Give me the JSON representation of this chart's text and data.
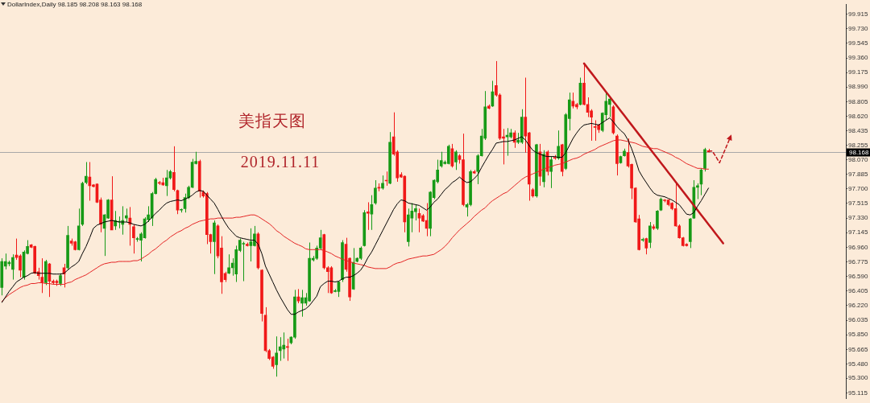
{
  "chart_data": {
    "type": "candlestick",
    "title": "DollarIndex,Daily 98.185 98.208 98.163 98.168",
    "annotations": [
      "美指天图",
      "2019.11.11"
    ],
    "categories": [
      null,
      null,
      null,
      null,
      null,
      null,
      null,
      null,
      null,
      null,
      null,
      null,
      null,
      null,
      null,
      null,
      null,
      null,
      null,
      null,
      null,
      null,
      null,
      null,
      null,
      null,
      null,
      null,
      null,
      null,
      null,
      null,
      null,
      null,
      null,
      null,
      null,
      null,
      null,
      null,
      null,
      null,
      null,
      null,
      null,
      null,
      null,
      null,
      null,
      null,
      null,
      null,
      null,
      null,
      null,
      null,
      null,
      null,
      null,
      null,
      null,
      null,
      null,
      null,
      null,
      null,
      null,
      null,
      null,
      null,
      null,
      null,
      null,
      null,
      null,
      null,
      null,
      null,
      null,
      null,
      null,
      null,
      null,
      null,
      null,
      null,
      null,
      null,
      null,
      null,
      null,
      null,
      null,
      null,
      null,
      null,
      null,
      null,
      null,
      null,
      null,
      null,
      null,
      null,
      null,
      null,
      null,
      null,
      null,
      null,
      null,
      null,
      null,
      null,
      null,
      null,
      null,
      null,
      null,
      null,
      null,
      null,
      null,
      null,
      null,
      null,
      null,
      null,
      null,
      null,
      null,
      null,
      null,
      null,
      null,
      null,
      null,
      null,
      null,
      null,
      null,
      null,
      null,
      null,
      null,
      null,
      null,
      null,
      null,
      null,
      null,
      null,
      null,
      null,
      null,
      null,
      null,
      null,
      null,
      null,
      null,
      null,
      null,
      null,
      null,
      null,
      null,
      null,
      null,
      null,
      null,
      null,
      null,
      null,
      null,
      null,
      null,
      null,
      null,
      null,
      null,
      null,
      null,
      null,
      null,
      null,
      null,
      null,
      null,
      null,
      null,
      null,
      null,
      null,
      null,
      null,
      null,
      null,
      null,
      null,
      null,
      null,
      null,
      null,
      null,
      null,
      null,
      null,
      null,
      null,
      null,
      null,
      null,
      null,
      null,
      null,
      null,
      null,
      null,
      null,
      null,
      null,
      null,
      null,
      null,
      null,
      null,
      null,
      null,
      null,
      null
    ],
    "ohlc": [
      [
        96.45,
        96.82,
        96.35,
        96.78
      ],
      [
        96.72,
        96.88,
        96.68,
        96.78
      ],
      [
        96.75,
        96.79,
        96.72,
        96.77
      ],
      [
        96.68,
        96.87,
        96.55,
        96.83
      ],
      [
        96.86,
        97.07,
        96.8,
        96.83
      ],
      [
        96.85,
        96.87,
        96.58,
        96.67
      ],
      [
        96.58,
        96.92,
        96.55,
        96.9
      ],
      [
        96.88,
        97.05,
        96.87,
        96.97
      ],
      [
        96.99,
        97.0,
        96.95,
        96.96
      ],
      [
        96.97,
        96.98,
        96.62,
        96.63
      ],
      [
        96.65,
        96.7,
        96.55,
        96.6
      ],
      [
        96.58,
        96.82,
        96.38,
        96.51
      ],
      [
        96.51,
        96.8,
        96.48,
        96.78
      ],
      [
        96.75,
        96.76,
        96.33,
        96.53
      ],
      [
        96.53,
        96.55,
        96.49,
        96.51
      ],
      [
        96.53,
        96.55,
        96.47,
        96.51
      ],
      [
        96.5,
        96.63,
        96.47,
        96.6
      ],
      [
        96.7,
        96.75,
        96.45,
        96.62
      ],
      [
        96.7,
        97.23,
        96.68,
        97.11
      ],
      [
        97.04,
        97.07,
        96.98,
        97.01
      ],
      [
        97.03,
        97.04,
        96.92,
        96.93
      ],
      [
        96.93,
        97.45,
        96.92,
        97.23
      ],
      [
        97.25,
        97.79,
        97.23,
        97.77
      ],
      [
        97.78,
        98.04,
        97.76,
        97.86
      ],
      [
        97.85,
        98.04,
        97.55,
        97.74
      ],
      [
        97.75,
        97.76,
        97.72,
        97.73
      ],
      [
        97.76,
        97.77,
        97.52,
        97.53
      ],
      [
        97.56,
        97.59,
        97.15,
        97.25
      ],
      [
        97.2,
        97.38,
        96.85,
        97.37
      ],
      [
        97.33,
        97.57,
        97.32,
        97.56
      ],
      [
        97.56,
        97.86,
        97.18,
        97.18
      ],
      [
        97.23,
        97.42,
        97.18,
        97.3
      ],
      [
        97.28,
        97.35,
        97.2,
        97.29
      ],
      [
        97.25,
        97.48,
        97.12,
        97.3
      ],
      [
        97.33,
        97.45,
        97.28,
        97.36
      ],
      [
        97.33,
        97.47,
        96.98,
        97.25
      ],
      [
        97.22,
        97.25,
        96.88,
        97.08
      ],
      [
        97.06,
        97.09,
        97.03,
        97.07
      ],
      [
        97.05,
        97.15,
        96.78,
        97.13
      ],
      [
        97.08,
        97.34,
        97.07,
        97.32
      ],
      [
        97.31,
        97.48,
        97.28,
        97.37
      ],
      [
        97.33,
        97.66,
        97.23,
        97.64
      ],
      [
        97.64,
        97.84,
        97.63,
        97.82
      ],
      [
        97.78,
        97.8,
        97.75,
        97.77
      ],
      [
        97.78,
        97.84,
        97.74,
        97.75
      ],
      [
        97.74,
        97.94,
        97.61,
        97.84
      ],
      [
        97.84,
        97.94,
        97.82,
        97.92
      ],
      [
        97.91,
        98.24,
        97.67,
        97.69
      ],
      [
        97.68,
        97.69,
        97.38,
        97.43
      ],
      [
        97.43,
        97.45,
        97.4,
        97.43
      ],
      [
        97.45,
        97.64,
        97.4,
        97.59
      ],
      [
        97.59,
        97.74,
        97.57,
        97.72
      ],
      [
        97.72,
        98.08,
        97.71,
        98.04
      ],
      [
        98.02,
        98.17,
        98.01,
        98.05
      ],
      [
        98.05,
        98.07,
        97.59,
        97.67
      ],
      [
        97.66,
        97.68,
        97.59,
        97.61
      ],
      [
        97.64,
        97.66,
        97.0,
        97.12
      ],
      [
        97.12,
        97.13,
        96.88,
        97.03
      ],
      [
        97.03,
        97.3,
        96.62,
        97.27
      ],
      [
        97.23,
        97.25,
        96.82,
        96.85
      ],
      [
        96.95,
        97.1,
        96.37,
        96.52
      ],
      [
        96.63,
        96.65,
        96.52,
        96.55
      ],
      [
        96.63,
        96.87,
        96.62,
        96.7
      ],
      [
        96.7,
        96.82,
        96.6,
        96.76
      ],
      [
        96.62,
        96.98,
        96.52,
        96.93
      ],
      [
        96.92,
        97.07,
        96.9,
        97.05
      ],
      [
        97.0,
        97.03,
        96.53,
        97.01
      ],
      [
        97.0,
        97.02,
        96.97,
        96.98
      ],
      [
        96.98,
        97.2,
        96.78,
        97.03
      ],
      [
        96.98,
        97.23,
        96.97,
        97.13
      ],
      [
        97.13,
        97.15,
        96.68,
        96.7
      ],
      [
        96.67,
        96.68,
        96.02,
        96.12
      ],
      [
        96.1,
        96.2,
        95.63,
        95.65
      ],
      [
        95.65,
        95.67,
        95.53,
        95.55
      ],
      [
        95.57,
        95.58,
        95.42,
        95.45
      ],
      [
        95.47,
        95.83,
        95.32,
        95.62
      ],
      [
        95.65,
        95.82,
        95.52,
        95.7
      ],
      [
        95.67,
        95.88,
        95.55,
        95.72
      ],
      [
        95.7,
        95.8,
        95.52,
        95.69
      ],
      [
        95.75,
        95.83,
        95.73,
        95.82
      ],
      [
        95.82,
        96.42,
        95.8,
        96.33
      ],
      [
        96.33,
        96.43,
        96.25,
        96.28
      ],
      [
        96.25,
        96.42,
        96.08,
        96.32
      ],
      [
        96.25,
        96.38,
        96.22,
        96.32
      ],
      [
        96.28,
        97.02,
        96.27,
        96.82
      ],
      [
        96.8,
        96.85,
        96.78,
        96.82
      ],
      [
        96.82,
        96.98,
        96.8,
        96.95
      ],
      [
        96.95,
        97.18,
        96.93,
        97.08
      ],
      [
        97.12,
        97.13,
        96.68,
        96.7
      ],
      [
        96.7,
        96.72,
        96.38,
        96.65
      ],
      [
        96.7,
        96.72,
        96.37,
        96.38
      ],
      [
        96.4,
        96.43,
        96.39,
        96.41
      ],
      [
        96.4,
        96.53,
        96.33,
        96.52
      ],
      [
        96.55,
        97.05,
        96.52,
        97.02
      ],
      [
        97.0,
        97.08,
        96.65,
        96.68
      ],
      [
        96.82,
        96.83,
        96.28,
        96.33
      ],
      [
        96.43,
        96.95,
        96.42,
        96.77
      ],
      [
        96.78,
        96.83,
        96.77,
        96.82
      ],
      [
        96.82,
        96.97,
        96.8,
        96.95
      ],
      [
        96.98,
        97.43,
        96.97,
        97.4
      ],
      [
        97.41,
        97.53,
        97.18,
        97.39
      ],
      [
        97.38,
        97.62,
        97.18,
        97.5
      ],
      [
        97.52,
        97.81,
        97.5,
        97.71
      ],
      [
        97.72,
        97.77,
        97.67,
        97.71
      ],
      [
        97.71,
        97.87,
        97.69,
        97.77
      ],
      [
        97.81,
        97.92,
        97.74,
        97.8
      ],
      [
        97.77,
        98.42,
        97.76,
        98.29
      ],
      [
        98.36,
        98.67,
        98.12,
        98.14
      ],
      [
        98.17,
        98.19,
        97.79,
        97.84
      ],
      [
        97.88,
        97.91,
        97.84,
        97.85
      ],
      [
        97.86,
        97.87,
        97.15,
        97.28
      ],
      [
        97.03,
        97.45,
        96.97,
        97.37
      ],
      [
        97.33,
        97.52,
        97.15,
        97.42
      ],
      [
        97.41,
        97.5,
        97.3,
        97.45
      ],
      [
        97.39,
        97.45,
        97.15,
        97.33
      ],
      [
        97.36,
        97.38,
        97.28,
        97.29
      ],
      [
        97.3,
        97.52,
        97.1,
        97.2
      ],
      [
        97.2,
        97.67,
        97.1,
        97.66
      ],
      [
        97.59,
        97.82,
        97.57,
        97.81
      ],
      [
        97.79,
        98.07,
        97.77,
        97.94
      ],
      [
        97.99,
        98.17,
        97.97,
        98.06
      ],
      [
        98.02,
        98.06,
        98.01,
        98.04
      ],
      [
        98.02,
        98.26,
        98.01,
        98.24
      ],
      [
        98.21,
        98.27,
        97.97,
        97.99
      ],
      [
        98.04,
        98.19,
        97.94,
        98.17
      ],
      [
        98.12,
        98.14,
        98.02,
        98.07
      ],
      [
        98.07,
        98.4,
        97.48,
        97.5
      ],
      [
        97.47,
        97.52,
        97.35,
        97.5
      ],
      [
        97.5,
        97.94,
        97.48,
        97.92
      ],
      [
        97.92,
        97.94,
        97.89,
        97.9
      ],
      [
        97.92,
        98.14,
        97.76,
        98.12
      ],
      [
        98.12,
        98.46,
        98.11,
        98.37
      ],
      [
        98.34,
        98.94,
        98.32,
        98.74
      ],
      [
        98.75,
        98.77,
        98.71,
        98.72
      ],
      [
        98.75,
        99.07,
        98.74,
        98.93
      ],
      [
        99.01,
        99.32,
        98.87,
        98.89
      ],
      [
        98.89,
        98.91,
        98.32,
        98.34
      ],
      [
        98.36,
        98.46,
        98.01,
        98.34
      ],
      [
        98.36,
        98.47,
        98.12,
        98.38
      ],
      [
        98.36,
        98.46,
        98.34,
        98.41
      ],
      [
        98.41,
        98.44,
        98.22,
        98.29
      ],
      [
        98.29,
        98.41,
        98.27,
        98.32
      ],
      [
        98.29,
        98.71,
        98.27,
        98.61
      ],
      [
        98.61,
        99.11,
        98.16,
        98.37
      ],
      [
        98.41,
        98.42,
        97.55,
        97.76
      ],
      [
        97.69,
        97.71,
        97.59,
        97.61
      ],
      [
        97.61,
        98.27,
        97.59,
        98.26
      ],
      [
        98.17,
        98.27,
        97.74,
        97.86
      ],
      [
        97.79,
        98.19,
        97.72,
        98.14
      ],
      [
        98.17,
        98.19,
        97.87,
        97.92
      ],
      [
        97.92,
        98.11,
        97.71,
        98.07
      ],
      [
        98.1,
        98.13,
        98.07,
        98.09
      ],
      [
        98.09,
        98.44,
        98.07,
        98.24
      ],
      [
        98.26,
        98.27,
        97.86,
        97.92
      ],
      [
        97.96,
        98.66,
        97.94,
        98.64
      ],
      [
        98.59,
        98.92,
        98.44,
        98.83
      ],
      [
        98.81,
        98.92,
        98.72,
        98.75
      ],
      [
        98.77,
        98.79,
        98.71,
        98.74
      ],
      [
        98.77,
        99.11,
        98.76,
        99.04
      ],
      [
        99.04,
        99.27,
        98.76,
        98.77
      ],
      [
        98.77,
        98.86,
        98.61,
        98.67
      ],
      [
        98.69,
        98.71,
        98.31,
        98.61
      ],
      [
        98.49,
        98.57,
        98.31,
        98.48
      ],
      [
        98.51,
        98.52,
        98.41,
        98.45
      ],
      [
        98.44,
        98.67,
        98.42,
        98.66
      ],
      [
        98.64,
        98.92,
        98.57,
        98.81
      ],
      [
        98.77,
        98.86,
        98.61,
        98.84
      ],
      [
        98.74,
        98.76,
        98.39,
        98.41
      ],
      [
        98.37,
        98.39,
        97.87,
        98.02
      ],
      [
        98.03,
        98.12,
        98.02,
        98.11
      ],
      [
        98.12,
        98.21,
        98.11,
        98.18
      ],
      [
        98.16,
        98.34,
        97.97,
        97.99
      ],
      [
        98.01,
        98.02,
        97.57,
        97.71
      ],
      [
        97.71,
        97.72,
        97.27,
        97.28
      ],
      [
        97.32,
        97.37,
        96.92,
        96.93
      ],
      [
        97.05,
        97.08,
        97.03,
        97.06
      ],
      [
        97.07,
        97.08,
        96.87,
        96.95
      ],
      [
        97.02,
        97.28,
        96.95,
        97.23
      ],
      [
        97.22,
        97.25,
        97.18,
        97.2
      ],
      [
        97.2,
        97.43,
        97.18,
        97.42
      ],
      [
        97.43,
        97.59,
        97.42,
        97.57
      ],
      [
        97.56,
        97.57,
        97.53,
        97.55
      ],
      [
        97.56,
        97.57,
        97.48,
        97.5
      ],
      [
        97.52,
        97.53,
        97.43,
        97.45
      ],
      [
        97.45,
        97.79,
        97.22,
        97.23
      ],
      [
        97.23,
        97.25,
        97.07,
        97.08
      ],
      [
        97.08,
        97.09,
        96.97,
        96.98
      ],
      [
        97.0,
        97.01,
        96.97,
        96.98
      ],
      [
        97.03,
        97.33,
        96.95,
        97.32
      ],
      [
        97.33,
        97.81,
        97.32,
        97.72
      ],
      [
        97.72,
        97.77,
        97.57,
        97.74
      ],
      [
        97.76,
        97.96,
        97.62,
        97.94
      ],
      [
        97.96,
        98.22,
        97.92,
        98.2
      ],
      [
        98.185,
        98.208,
        98.163,
        98.168
      ],
      null,
      null,
      null,
      null,
      null,
      null,
      null,
      null,
      null,
      null,
      null,
      null,
      null,
      null,
      null,
      null,
      null,
      null,
      null,
      null,
      null,
      null,
      null,
      null,
      null,
      null,
      null,
      null,
      null,
      null,
      null,
      null,
      null,
      null,
      null,
      null,
      null
    ],
    "colors": [
      "#169a16",
      "#169a16",
      "#169a16",
      "#169a16",
      "#f01818",
      "#f01818",
      "#169a16",
      "#169a16",
      "#f01818",
      "#f01818",
      "#f01818",
      "#f01818",
      "#169a16",
      "#f01818",
      "#f01818",
      "#f01818",
      "#169a16",
      "#f01818",
      "#169a16",
      "#f01818",
      "#f01818",
      "#169a16",
      "#169a16",
      "#169a16",
      "#f01818",
      "#f01818",
      "#f01818",
      "#f01818",
      "#169a16",
      "#169a16",
      "#f01818",
      "#169a16",
      "#169a16",
      "#169a16",
      "#169a16",
      "#f01818",
      "#f01818",
      "#169a16",
      "#169a16",
      "#169a16",
      "#169a16",
      "#169a16",
      "#169a16",
      "#f01818",
      "#f01818",
      "#169a16",
      "#169a16",
      "#f01818",
      "#f01818",
      "#169a16",
      "#169a16",
      "#169a16",
      "#169a16",
      "#169a16",
      "#f01818",
      "#f01818",
      "#f01818",
      "#f01818",
      "#169a16",
      "#f01818",
      "#f01818",
      "#f01818",
      "#169a16",
      "#169a16",
      "#169a16",
      "#169a16",
      "#169a16",
      "#f01818",
      "#169a16",
      "#169a16",
      "#f01818",
      "#f01818",
      "#f01818",
      "#f01818",
      "#f01818",
      "#169a16",
      "#169a16",
      "#169a16",
      "#f01818",
      "#169a16",
      "#169a16",
      "#f01818",
      "#169a16",
      "#169a16",
      "#169a16",
      "#169a16",
      "#169a16",
      "#169a16",
      "#f01818",
      "#f01818",
      "#f01818",
      "#169a16",
      "#169a16",
      "#169a16",
      "#f01818",
      "#f01818",
      "#169a16",
      "#169a16",
      "#169a16",
      "#169a16",
      "#f01818",
      "#169a16",
      "#169a16",
      "#f01818",
      "#169a16",
      "#f01818",
      "#169a16",
      "#f01818",
      "#f01818",
      "#f01818",
      "#f01818",
      "#169a16",
      "#169a16",
      "#169a16",
      "#f01818",
      "#f01818",
      "#f01818",
      "#169a16",
      "#169a16",
      "#169a16",
      "#169a16",
      "#169a16",
      "#169a16",
      "#f01818",
      "#169a16",
      "#f01818",
      "#f01818",
      "#169a16",
      "#169a16",
      "#f01818",
      "#169a16",
      "#169a16",
      "#169a16",
      "#f01818",
      "#169a16",
      "#f01818",
      "#f01818",
      "#f01818",
      "#169a16",
      "#169a16",
      "#f01818",
      "#169a16",
      "#169a16",
      "#f01818",
      "#f01818",
      "#f01818",
      "#169a16",
      "#f01818",
      "#169a16",
      "#f01818",
      "#169a16",
      "#f01818",
      "#169a16",
      "#f01818",
      "#169a16",
      "#169a16",
      "#f01818",
      "#f01818",
      "#169a16",
      "#f01818",
      "#f01818",
      "#f01818",
      "#f01818",
      "#f01818",
      "#169a16",
      "#169a16",
      "#169a16",
      "#f01818",
      "#f01818",
      "#169a16",
      "#169a16",
      "#f01818",
      "#f01818",
      "#f01818",
      "#f01818",
      "#169a16",
      "#f01818",
      "#169a16",
      "#f01818",
      "#169a16",
      "#169a16",
      "#f01818",
      "#f01818",
      "#f01818",
      "#f01818",
      "#f01818",
      "#f01818",
      "#f01818",
      "#169a16",
      "#169a16",
      "#169a16",
      "#169a16",
      "#169a16",
      "#f01818",
      null,
      null,
      null,
      null,
      null,
      null,
      null,
      null,
      null,
      null,
      null,
      null,
      null,
      null,
      null,
      null,
      null,
      null,
      null,
      null,
      null,
      null,
      null,
      null,
      null,
      null,
      null,
      null,
      null,
      null,
      null,
      null,
      null,
      null,
      null,
      null,
      null
    ],
    "ylim": [
      95.045,
      100.035
    ],
    "yticks": [
      99.915,
      {
        "value": 99.73,
        "label": "99.730"
      },
      99.545,
      {
        "value": 99.36,
        "label": "99.360"
      },
      99.175,
      {
        "value": 98.99,
        "label": "98.990"
      },
      98.805,
      {
        "value": 98.62,
        "label": "98.620"
      },
      98.435,
      98.255,
      {
        "value": 98.07,
        "label": "98.070"
      },
      97.885,
      {
        "value": 97.7,
        "label": "97.700"
      },
      97.515,
      {
        "value": 97.33,
        "label": "97.330"
      },
      97.145,
      {
        "value": 96.96,
        "label": "96.960"
      },
      96.775,
      {
        "value": 96.59,
        "label": "96.590"
      },
      96.405,
      {
        "value": 96.22,
        "label": "96.220"
      },
      96.035,
      {
        "value": 95.85,
        "label": "95.850"
      },
      95.665,
      {
        "value": 95.48,
        "label": "95.480"
      },
      {
        "value": 95.3,
        "label": "95.300"
      },
      95.115
    ],
    "tick_labels": "y",
    "ref_lines": [
      {
        "axis": "y",
        "value": 98.168,
        "label": "98.168",
        "color": "#a8a8a8"
      }
    ],
    "series": [
      {
        "type": "line",
        "color": "#000000",
        "values": [
          96.26,
          96.33,
          96.4,
          96.46,
          96.52,
          96.55,
          96.58,
          96.6,
          96.63,
          96.64,
          96.63,
          96.63,
          96.63,
          96.63,
          96.62,
          96.62,
          96.62,
          96.63,
          96.67,
          96.71,
          96.74,
          96.78,
          96.88,
          96.97,
          97.08,
          97.2,
          97.24,
          97.26,
          97.28,
          97.29,
          97.3,
          97.29,
          97.28,
          97.28,
          97.28,
          97.27,
          97.25,
          97.24,
          97.23,
          97.25,
          97.29,
          97.34,
          97.39,
          97.43,
          97.48,
          97.52,
          97.54,
          97.55,
          97.56,
          97.55,
          97.57,
          97.59,
          97.62,
          97.66,
          97.68,
          97.67,
          97.62,
          97.57,
          97.52,
          97.44,
          97.35,
          97.27,
          97.2,
          97.15,
          97.1,
          97.08,
          97.07,
          97.06,
          97.05,
          97.05,
          97.0,
          96.88,
          96.72,
          96.62,
          96.52,
          96.42,
          96.33,
          96.25,
          96.17,
          96.11,
          96.11,
          96.14,
          96.16,
          96.18,
          96.22,
          96.28,
          96.34,
          96.46,
          96.5,
          96.53,
          96.53,
          96.52,
          96.53,
          96.56,
          96.58,
          96.58,
          96.6,
          96.63,
          96.67,
          96.74,
          96.83,
          96.9,
          96.99,
          97.08,
          97.17,
          97.26,
          97.35,
          97.44,
          97.51,
          97.56,
          97.55,
          97.52,
          97.51,
          97.5,
          97.49,
          97.46,
          97.43,
          97.47,
          97.53,
          97.57,
          97.63,
          97.69,
          97.73,
          97.78,
          97.81,
          97.85,
          97.81,
          97.78,
          97.79,
          97.83,
          97.88,
          97.97,
          98.05,
          98.13,
          98.2,
          98.28,
          98.29,
          98.3,
          98.3,
          98.31,
          98.32,
          98.34,
          98.36,
          98.32,
          98.25,
          98.19,
          98.16,
          98.14,
          98.12,
          98.11,
          98.11,
          98.11,
          98.1,
          98.1,
          98.16,
          98.25,
          98.34,
          98.41,
          98.47,
          98.51,
          98.52,
          98.53,
          98.52,
          98.51,
          98.54,
          98.57,
          98.6,
          98.55,
          98.49,
          98.44,
          98.4,
          98.32,
          98.21,
          98.08,
          97.93,
          97.85,
          97.78,
          97.71,
          97.65,
          97.62,
          97.61,
          97.6,
          97.58,
          97.56,
          97.53,
          97.5,
          97.44,
          97.38,
          97.37,
          97.4,
          97.48,
          97.55,
          97.63,
          97.71,
          null,
          null,
          null,
          null,
          null,
          null,
          null,
          null,
          null,
          null,
          null,
          null,
          null,
          null,
          null,
          null,
          null,
          null,
          null,
          null,
          null,
          null,
          null,
          null,
          null,
          null,
          null,
          null,
          null,
          null,
          null,
          null,
          null,
          null,
          null,
          null,
          null
        ]
      },
      {
        "type": "line",
        "color": "#e42424",
        "values": [
          96.27,
          96.32,
          96.36,
          96.39,
          96.42,
          96.45,
          96.47,
          96.48,
          96.5,
          96.5,
          96.51,
          96.51,
          96.5,
          96.5,
          96.49,
          96.49,
          96.49,
          96.49,
          96.51,
          96.52,
          96.55,
          96.57,
          96.59,
          96.61,
          96.64,
          96.67,
          96.7,
          96.73,
          96.75,
          96.76,
          96.77,
          96.77,
          96.78,
          96.78,
          96.78,
          96.78,
          96.79,
          96.79,
          96.81,
          96.84,
          96.87,
          96.91,
          96.94,
          96.98,
          97.02,
          97.05,
          97.09,
          97.12,
          97.15,
          97.17,
          97.2,
          97.22,
          97.25,
          97.27,
          97.29,
          97.3,
          97.31,
          97.32,
          97.32,
          97.33,
          97.33,
          97.33,
          97.33,
          97.33,
          97.34,
          97.34,
          97.35,
          97.36,
          97.37,
          97.37,
          97.35,
          97.32,
          97.29,
          97.26,
          97.22,
          97.17,
          97.14,
          97.1,
          97.07,
          97.04,
          97.01,
          96.99,
          96.97,
          96.94,
          96.93,
          96.93,
          96.93,
          96.93,
          96.92,
          96.9,
          96.88,
          96.85,
          96.83,
          96.81,
          96.79,
          96.78,
          96.76,
          96.75,
          96.74,
          96.73,
          96.71,
          96.7,
          96.69,
          96.69,
          96.69,
          96.69,
          96.71,
          96.74,
          96.76,
          96.77,
          96.79,
          96.81,
          96.82,
          96.83,
          96.84,
          96.85,
          96.85,
          96.86,
          96.87,
          96.9,
          96.93,
          96.97,
          97.02,
          97.08,
          97.13,
          97.18,
          97.22,
          97.26,
          97.3,
          97.35,
          97.39,
          97.43,
          97.46,
          97.51,
          97.55,
          97.58,
          97.61,
          97.64,
          97.66,
          97.7,
          97.74,
          97.78,
          97.82,
          97.85,
          97.87,
          97.89,
          97.91,
          97.93,
          97.95,
          97.97,
          97.98,
          98.0,
          98.01,
          98.02,
          98.04,
          98.06,
          98.08,
          98.09,
          98.11,
          98.14,
          98.16,
          98.18,
          98.2,
          98.23,
          98.25,
          98.27,
          98.29,
          98.31,
          98.32,
          98.32,
          98.31,
          98.3,
          98.29,
          98.28,
          98.26,
          98.24,
          98.23,
          98.22,
          98.21,
          98.21,
          98.19,
          98.17,
          98.15,
          98.13,
          98.1,
          98.08,
          98.05,
          98.02,
          98.0,
          97.98,
          97.96,
          97.96,
          97.95,
          97.95,
          null,
          null,
          null,
          null,
          null,
          null,
          null,
          null,
          null,
          null,
          null,
          null,
          null,
          null,
          null,
          null,
          null,
          null,
          null,
          null,
          null,
          null,
          null,
          null,
          null,
          null,
          null,
          null,
          null,
          null,
          null,
          null,
          null,
          null,
          null,
          null,
          null
        ]
      },
      {
        "type": "line",
        "color": "#c0181c",
        "values": [
          null,
          null,
          null,
          null,
          null,
          null,
          null,
          null,
          null,
          null,
          null,
          null,
          null,
          null,
          null,
          null,
          null,
          null,
          null,
          null,
          null,
          null,
          null,
          null,
          null,
          null,
          null,
          null,
          null,
          null,
          null,
          null,
          null,
          null,
          null,
          null,
          null,
          null,
          null,
          null,
          null,
          null,
          null,
          null,
          null,
          null,
          null,
          null,
          null,
          null,
          null,
          null,
          null,
          null,
          null,
          null,
          null,
          null,
          null,
          null,
          null,
          null,
          null,
          null,
          null,
          null,
          null,
          null,
          null,
          null,
          null,
          null,
          null,
          null,
          null,
          null,
          null,
          null,
          null,
          null,
          null,
          null,
          null,
          null,
          null,
          null,
          null,
          null,
          null,
          null,
          null,
          null,
          null,
          null,
          null,
          null,
          null,
          null,
          null,
          null,
          null,
          null,
          null,
          null,
          null,
          null,
          null,
          null,
          null,
          null,
          null,
          null,
          null,
          null,
          null,
          null,
          null,
          null,
          null,
          null,
          null,
          null,
          null,
          null,
          null,
          null,
          null,
          null,
          null,
          null,
          null,
          null,
          null,
          null,
          null,
          null,
          null,
          null,
          null,
          null,
          null,
          null,
          null,
          null,
          null,
          null,
          null,
          null,
          null,
          null,
          null,
          null,
          null,
          null,
          null,
          null,
          null,
          null,
          null,
          99.29,
          99.23,
          99.17,
          99.11,
          99.05,
          98.99,
          98.93,
          98.87,
          98.81,
          98.75,
          98.69,
          98.63,
          98.57,
          98.51,
          98.45,
          98.39,
          98.33,
          98.27,
          98.21,
          98.15,
          98.09,
          98.03,
          97.97,
          97.91,
          97.85,
          97.79,
          97.73,
          97.67,
          97.61,
          97.55,
          97.49,
          97.43,
          97.37,
          97.31,
          97.25,
          97.19,
          97.13,
          97.07,
          97.01,
          null,
          null,
          null,
          null,
          null,
          null,
          null,
          null,
          null,
          null,
          null,
          null,
          null,
          null,
          null,
          null,
          null,
          null,
          null,
          null,
          null,
          null,
          null,
          null,
          null,
          null,
          null,
          null,
          null,
          null,
          null,
          null,
          null
        ]
      },
      {
        "type": "line",
        "color": "#c0181c",
        "line_style": "dashed",
        "values": [
          null,
          null,
          null,
          null,
          null,
          null,
          null,
          null,
          null,
          null,
          null,
          null,
          null,
          null,
          null,
          null,
          null,
          null,
          null,
          null,
          null,
          null,
          null,
          null,
          null,
          null,
          null,
          null,
          null,
          null,
          null,
          null,
          null,
          null,
          null,
          null,
          null,
          null,
          null,
          null,
          null,
          null,
          null,
          null,
          null,
          null,
          null,
          null,
          null,
          null,
          null,
          null,
          null,
          null,
          null,
          null,
          null,
          null,
          null,
          null,
          null,
          null,
          null,
          null,
          null,
          null,
          null,
          null,
          null,
          null,
          null,
          null,
          null,
          null,
          null,
          null,
          null,
          null,
          null,
          null,
          null,
          null,
          null,
          null,
          null,
          null,
          null,
          null,
          null,
          null,
          null,
          null,
          null,
          null,
          null,
          null,
          null,
          null,
          null,
          null,
          null,
          null,
          null,
          null,
          null,
          null,
          null,
          null,
          null,
          null,
          null,
          null,
          null,
          null,
          null,
          null,
          null,
          null,
          null,
          null,
          null,
          null,
          null,
          null,
          null,
          null,
          null,
          null,
          null,
          null,
          null,
          null,
          null,
          null,
          null,
          null,
          null,
          null,
          null,
          null,
          null,
          null,
          null,
          null,
          null,
          null,
          null,
          null,
          null,
          null,
          null,
          null,
          null,
          null,
          null,
          null,
          null,
          null,
          null,
          null,
          null,
          null,
          null,
          null,
          null,
          null,
          null,
          null,
          null,
          null,
          null,
          null,
          null,
          null,
          null,
          null,
          null,
          null,
          null,
          null,
          null,
          null,
          null,
          null,
          null,
          null,
          null,
          null,
          null,
          null,
          null,
          null,
          null,
          98.18,
          98.18,
          98.11,
          98.03,
          98.14,
          98.25,
          98.36,
          null,
          null,
          null,
          null,
          null,
          null,
          null,
          null,
          null,
          null,
          null,
          null,
          null,
          null,
          null,
          null,
          null,
          null,
          null,
          null,
          null,
          null,
          null,
          null,
          null,
          null,
          null,
          null,
          null,
          null,
          null
        ]
      }
    ]
  }
}
